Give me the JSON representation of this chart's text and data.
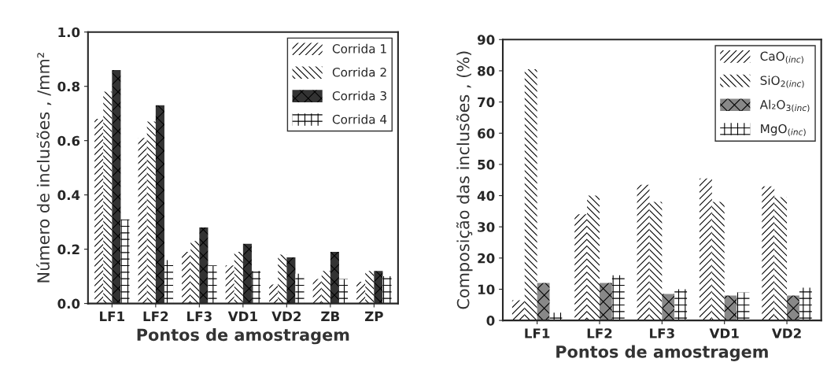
{
  "chart_data": [
    {
      "type": "bar",
      "xlabel": "Pontos de amostragem",
      "ylabel": "Número de inclusões , /mm²",
      "categories": [
        "LF1",
        "LF2",
        "LF3",
        "VD1",
        "VD2",
        "ZB",
        "ZP"
      ],
      "ylim": [
        0,
        1.0
      ],
      "yticks": [
        {
          "value": 0,
          "label": "0.0"
        },
        0.2,
        0.4,
        0.6,
        0.8,
        {
          "value": 1.0,
          "label": "1.0"
        }
      ],
      "grid": false,
      "legend": "top right",
      "series": [
        {
          "name": "Corrida 1",
          "color": "#ffffff",
          "values": [
            0.68,
            0.61,
            0.19,
            0.14,
            0.07,
            0.09,
            0.08
          ]
        },
        {
          "name": "Corrida 2",
          "color": "#ffffff",
          "values": [
            0.78,
            0.67,
            0.23,
            0.19,
            0.18,
            0.12,
            0.12
          ]
        },
        {
          "name": "Corrida 3",
          "color": "#333333",
          "values": [
            0.86,
            0.73,
            0.28,
            0.22,
            0.17,
            0.19,
            0.12
          ]
        },
        {
          "name": "Corrida 4",
          "color": "#ffffff",
          "values": [
            0.31,
            0.16,
            0.14,
            0.12,
            0.11,
            0.09,
            0.1
          ]
        }
      ]
    },
    {
      "type": "bar",
      "xlabel": "Pontos de amostragem",
      "ylabel": "Composição das inclusões , (%)",
      "categories": [
        "LF1",
        "LF2",
        "LF3",
        "VD1",
        "VD2"
      ],
      "ylim": [
        0,
        90
      ],
      "yticks": [
        0,
        10,
        20,
        30,
        40,
        50,
        60,
        70,
        80,
        90
      ],
      "grid": false,
      "legend": "top right",
      "series": [
        {
          "name": "CaO$_{(inc)}$",
          "color": "#ffffff",
          "values": [
            6.5,
            34,
            43.5,
            45.5,
            43
          ]
        },
        {
          "name": "SiO$_{2(inc)}$",
          "color": "#ffffff",
          "values": [
            80.5,
            40,
            38,
            38,
            39.5
          ]
        },
        {
          "name": "Al₂O$_{3(inc)}$",
          "color": "#888888",
          "values": [
            12,
            12,
            8.5,
            8,
            8
          ]
        },
        {
          "name": "MgO$_{(inc)}$",
          "color": "#ffffff",
          "values": [
            2.5,
            14.5,
            10,
            9,
            10.5
          ]
        }
      ]
    }
  ]
}
